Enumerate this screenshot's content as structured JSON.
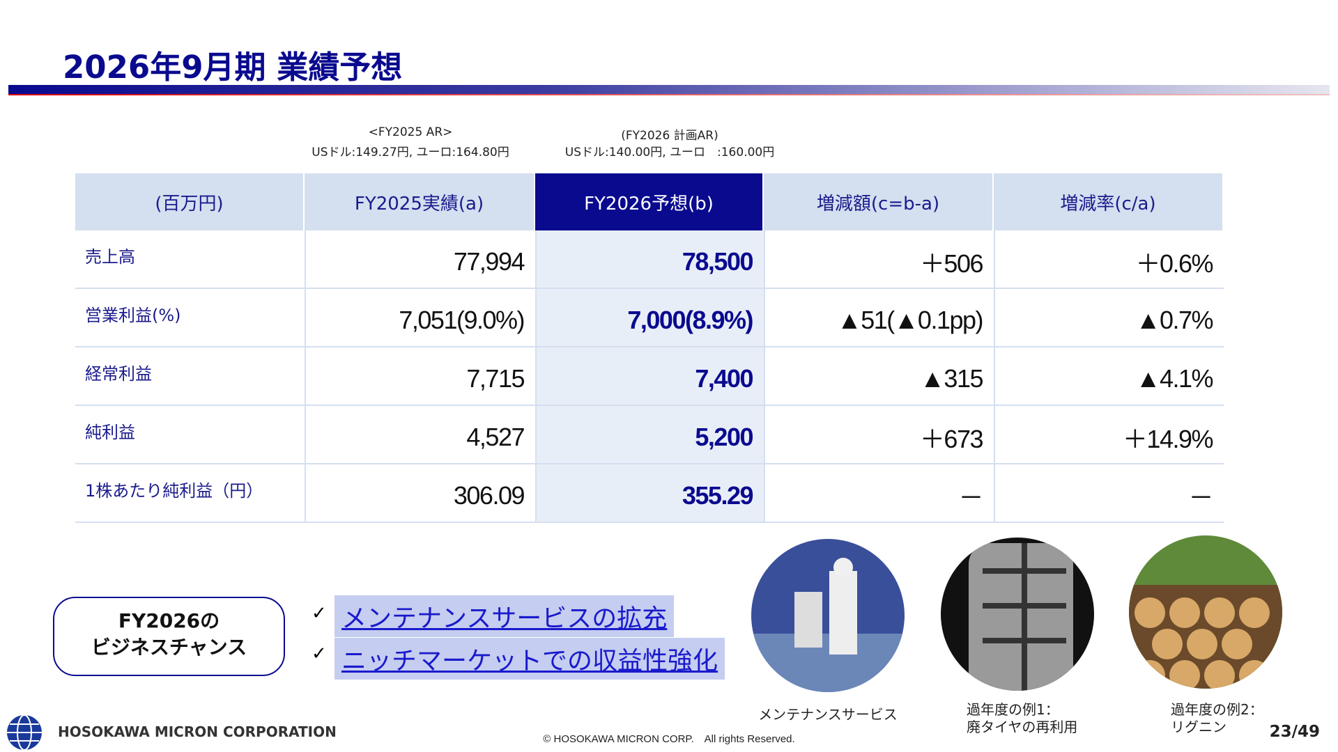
{
  "header": {
    "title": "2026年9月期 業績予想"
  },
  "rates": [
    {
      "label": "<FY2025 AR>",
      "text": "USドル:149.27円, ユーロ:164.80円"
    },
    {
      "label": "(FY2026 計画AR)",
      "text": "USドル:140.00円, ユーロ　:160.00円"
    }
  ],
  "table": {
    "columns": [
      "(百万円)",
      "FY2025実績(a)",
      "FY2026予想(b)",
      "増減額(c=b-a)",
      "増減率(c/a)"
    ],
    "rows": [
      [
        "売上高",
        "77,994",
        "78,500",
        "＋506",
        "＋0.6%"
      ],
      [
        "営業利益(%)",
        "7,051(9.0%)",
        "7,000(8.9%)",
        "▲51(▲0.1pp)",
        "▲0.7%"
      ],
      [
        "経常利益",
        "7,715",
        "7,400",
        "▲315",
        "▲4.1%"
      ],
      [
        "純利益",
        "4,527",
        "5,200",
        "＋673",
        "＋14.9%"
      ],
      [
        "1株あたり純利益（円）",
        "306.09",
        "355.29",
        "－",
        "－"
      ]
    ]
  },
  "chance": {
    "label": [
      "FY2026の",
      "ビジネスチャンス"
    ],
    "items": [
      "メンテナンスサービスの拡充",
      "ニッチマーケットでの収益性強化"
    ]
  },
  "photos": [
    {
      "caption": [
        "メンテナンスサービス"
      ]
    },
    {
      "caption": [
        "過年度の例1：",
        "廃タイヤの再利用"
      ]
    },
    {
      "caption": [
        "過年度の例2：",
        "リグニン"
      ]
    }
  ],
  "footer": {
    "company": "HOSOKAWA MICRON CORPORATION",
    "copyright": "© HOSOKAWA MICRON CORP.　All rights Reserved.",
    "page": "23/49"
  }
}
